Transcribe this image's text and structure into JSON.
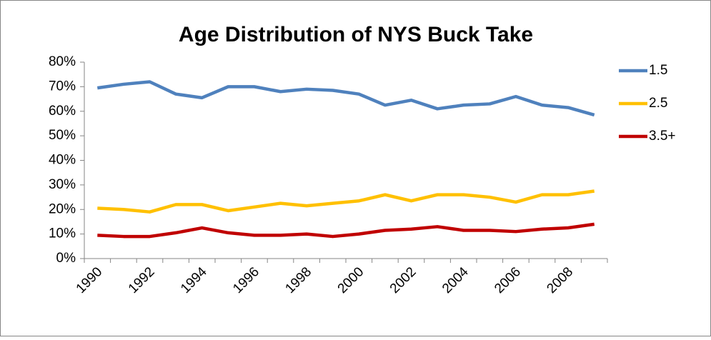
{
  "chart_data": {
    "type": "line",
    "title": "Age Distribution of NYS Buck Take",
    "categories": [
      "1990",
      null,
      "1992",
      null,
      "1994",
      null,
      "1996",
      null,
      "1998",
      null,
      "2000",
      null,
      "2002",
      null,
      "2004",
      null,
      "2006",
      null,
      "2008",
      null
    ],
    "series": [
      {
        "name": "1.5",
        "color": "#4f81bd",
        "values": [
          69.5,
          71,
          72,
          67,
          65.5,
          70,
          70,
          68,
          69,
          68.5,
          67,
          62.5,
          64.5,
          61,
          62.5,
          63,
          66,
          62.5,
          61.5,
          58.5
        ]
      },
      {
        "name": "2.5",
        "color": "#ffc000",
        "values": [
          20.5,
          20,
          19,
          22,
          22,
          19.5,
          21,
          22.5,
          21.5,
          22.5,
          23.5,
          26,
          23.5,
          26,
          26,
          25,
          23,
          26,
          26,
          27.5
        ]
      },
      {
        "name": "3.5+",
        "color": "#c00000",
        "values": [
          9.5,
          9,
          9,
          10.5,
          12.5,
          10.5,
          9.5,
          9.5,
          10,
          9,
          10,
          11.5,
          12,
          13,
          11.5,
          11.5,
          11,
          12,
          12.5,
          14
        ]
      }
    ],
    "ylim": [
      0,
      80
    ],
    "yticks": [
      {
        "value": 0,
        "label": "0%"
      },
      {
        "value": 10,
        "label": "10%"
      },
      {
        "value": 20,
        "label": "20%"
      },
      {
        "value": 30,
        "label": "30%"
      },
      {
        "value": 40,
        "label": "40%"
      },
      {
        "value": 50,
        "label": "50%"
      },
      {
        "value": 60,
        "label": "60%"
      },
      {
        "value": 70,
        "label": "70%"
      },
      {
        "value": 80,
        "label": "80%"
      }
    ],
    "grid": false,
    "legend": "right"
  }
}
